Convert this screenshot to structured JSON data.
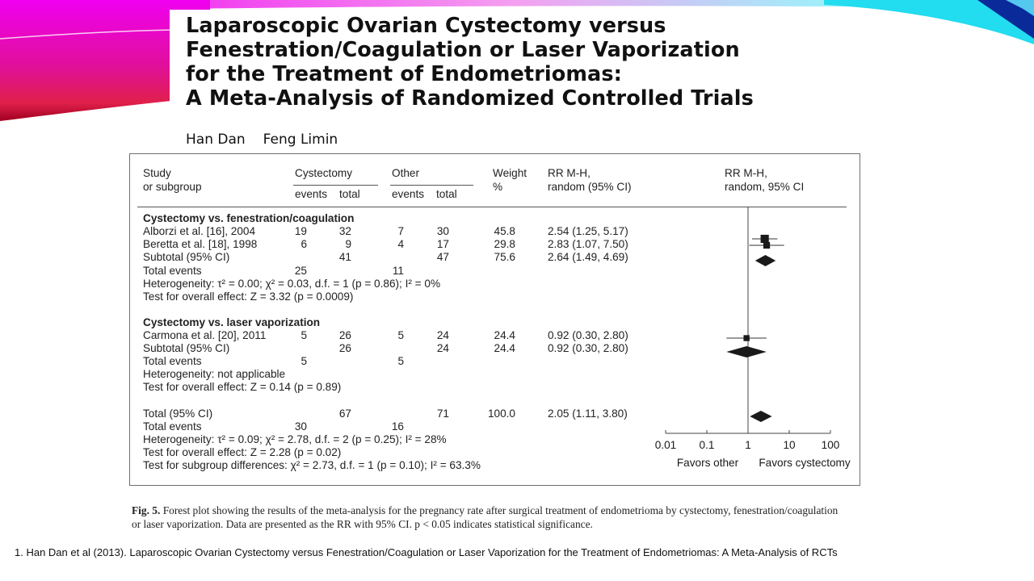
{
  "slide": {
    "title_lines": [
      "Laparoscopic Ovarian Cystectomy versus",
      "Fenestration/Coagulation or Laser Vaporization",
      "for the Treatment of Endometriomas:",
      "A Meta-Analysis of Randomized Controlled Trials"
    ],
    "authors": [
      "Han Dan",
      "Feng Limin"
    ],
    "caption_label": "Fig. 5.",
    "caption_text": " Forest plot showing the results of the meta-analysis for the pregnancy rate after surgical treatment of endometrioma by cystectomy, fenestration/coagulation or laser vaporization. Data are presented as the RR with 95% CI. p < 0.05 indicates statistical significance.",
    "footnote": "1. Han Dan et al (2013). Laparoscopic Ovarian Cystectomy versus Fenestration/Coagulation or Laser Vaporization for the Treatment of Endometriomas: A Meta-Analysis  of RCTs",
    "colors": {
      "left_swoosh": "#e800e8",
      "left_swoosh_dark": "#c0003a",
      "right_swoosh": "#00d8f0",
      "right_swoosh_dark": "#001a8c"
    }
  },
  "table": {
    "headers": {
      "study": [
        "Study",
        "or subgroup"
      ],
      "cystectomy": "Cystectomy",
      "other": "Other",
      "events": "events",
      "total": "total",
      "weight": [
        "Weight",
        "%"
      ],
      "rr": [
        "RR M-H,",
        "random (95% CI)"
      ],
      "plot": [
        "RR M-H,",
        "random, 95% CI"
      ]
    },
    "rows": [
      {
        "type": "group",
        "label": "Cystectomy vs. fenestration/coagulation"
      },
      {
        "type": "study",
        "label": "Alborzi et al. [16], 2004",
        "c_events": "19",
        "c_total": "32",
        "o_events": "7",
        "o_total": "30",
        "weight": "45.8",
        "rr": "2.54 (1.25, 5.17)"
      },
      {
        "type": "study",
        "label": "Beretta et al. [18], 1998",
        "c_events": "6",
        "c_total": "9",
        "o_events": "4",
        "o_total": "17",
        "weight": "29.8",
        "rr": "2.83 (1.07, 7.50)"
      },
      {
        "type": "study",
        "label": "Subtotal (95% CI)",
        "c_total": "41",
        "o_total": "47",
        "weight": "75.6",
        "rr": "2.64 (1.49, 4.69)"
      },
      {
        "type": "study",
        "label": "Total events",
        "c_events": "25",
        "o_events": "11"
      },
      {
        "type": "text",
        "label": "Heterogeneity: τ² = 0.00; χ² = 0.03, d.f. = 1 (p = 0.86); I² = 0%"
      },
      {
        "type": "text",
        "label": "Test for overall effect: Z = 3.32 (p = 0.0009)"
      },
      {
        "type": "group",
        "label": "Cystectomy vs. laser vaporization"
      },
      {
        "type": "study",
        "label": "Carmona et al. [20], 2011",
        "c_events": "5",
        "c_total": "26",
        "o_events": "5",
        "o_total": "24",
        "weight": "24.4",
        "rr": "0.92 (0.30, 2.80)"
      },
      {
        "type": "study",
        "label": "Subtotal (95% CI)",
        "c_total": "26",
        "o_total": "24",
        "weight": "24.4",
        "rr": "0.92 (0.30, 2.80)"
      },
      {
        "type": "study",
        "label": "Total events",
        "c_events": "5",
        "o_events": "5"
      },
      {
        "type": "text",
        "label": "Heterogeneity: not applicable"
      },
      {
        "type": "text",
        "label": "Test for overall effect: Z = 0.14 (p = 0.89)"
      },
      {
        "type": "study",
        "label": "Total (95% CI)",
        "c_total": "67",
        "o_total": "71",
        "weight": "100.0",
        "rr": "2.05 (1.11, 3.80)"
      },
      {
        "type": "study",
        "label": "Total events",
        "c_events": "30",
        "o_events": "16"
      },
      {
        "type": "text",
        "label": "Heterogeneity: τ² = 0.09; χ² = 2.78, d.f. = 2 (p = 0.25); I² = 28%"
      },
      {
        "type": "text",
        "label": "Test for overall effect: Z = 2.28 (p = 0.02)"
      },
      {
        "type": "text",
        "label": "Test for subgroup differences: χ² = 2.73, d.f. = 1 (p = 0.10); I² = 63.3%"
      }
    ]
  },
  "chart_data": {
    "type": "forest",
    "xscale": "log",
    "xlim": [
      0.01,
      100
    ],
    "reference_line": 1,
    "xticks": [
      "0.01",
      "0.1",
      "1",
      "10",
      "100"
    ],
    "xlabel_left": "Favors other",
    "xlabel_right": "Favors cystectomy",
    "marks": [
      {
        "label": "Alborzi et al. [16], 2004",
        "shape": "square",
        "rr": 2.54,
        "ci": [
          1.25,
          5.17
        ],
        "weight": 45.8
      },
      {
        "label": "Beretta et al. [18], 1998",
        "shape": "square",
        "rr": 2.83,
        "ci": [
          1.07,
          7.5
        ],
        "weight": 29.8
      },
      {
        "label": "Subtotal (95% CI)",
        "shape": "diamond",
        "rr": 2.64,
        "ci": [
          1.49,
          4.69
        ],
        "weight": 75.6
      },
      {
        "label": "Carmona et al. [20], 2011",
        "shape": "square",
        "rr": 0.92,
        "ci": [
          0.3,
          2.8
        ],
        "weight": 24.4
      },
      {
        "label": "Subtotal (95% CI)",
        "shape": "diamond",
        "rr": 0.92,
        "ci": [
          0.3,
          2.8
        ],
        "weight": 24.4
      },
      {
        "label": "Total (95% CI)",
        "shape": "diamond",
        "rr": 2.05,
        "ci": [
          1.11,
          3.8
        ],
        "weight": 100.0
      }
    ]
  }
}
